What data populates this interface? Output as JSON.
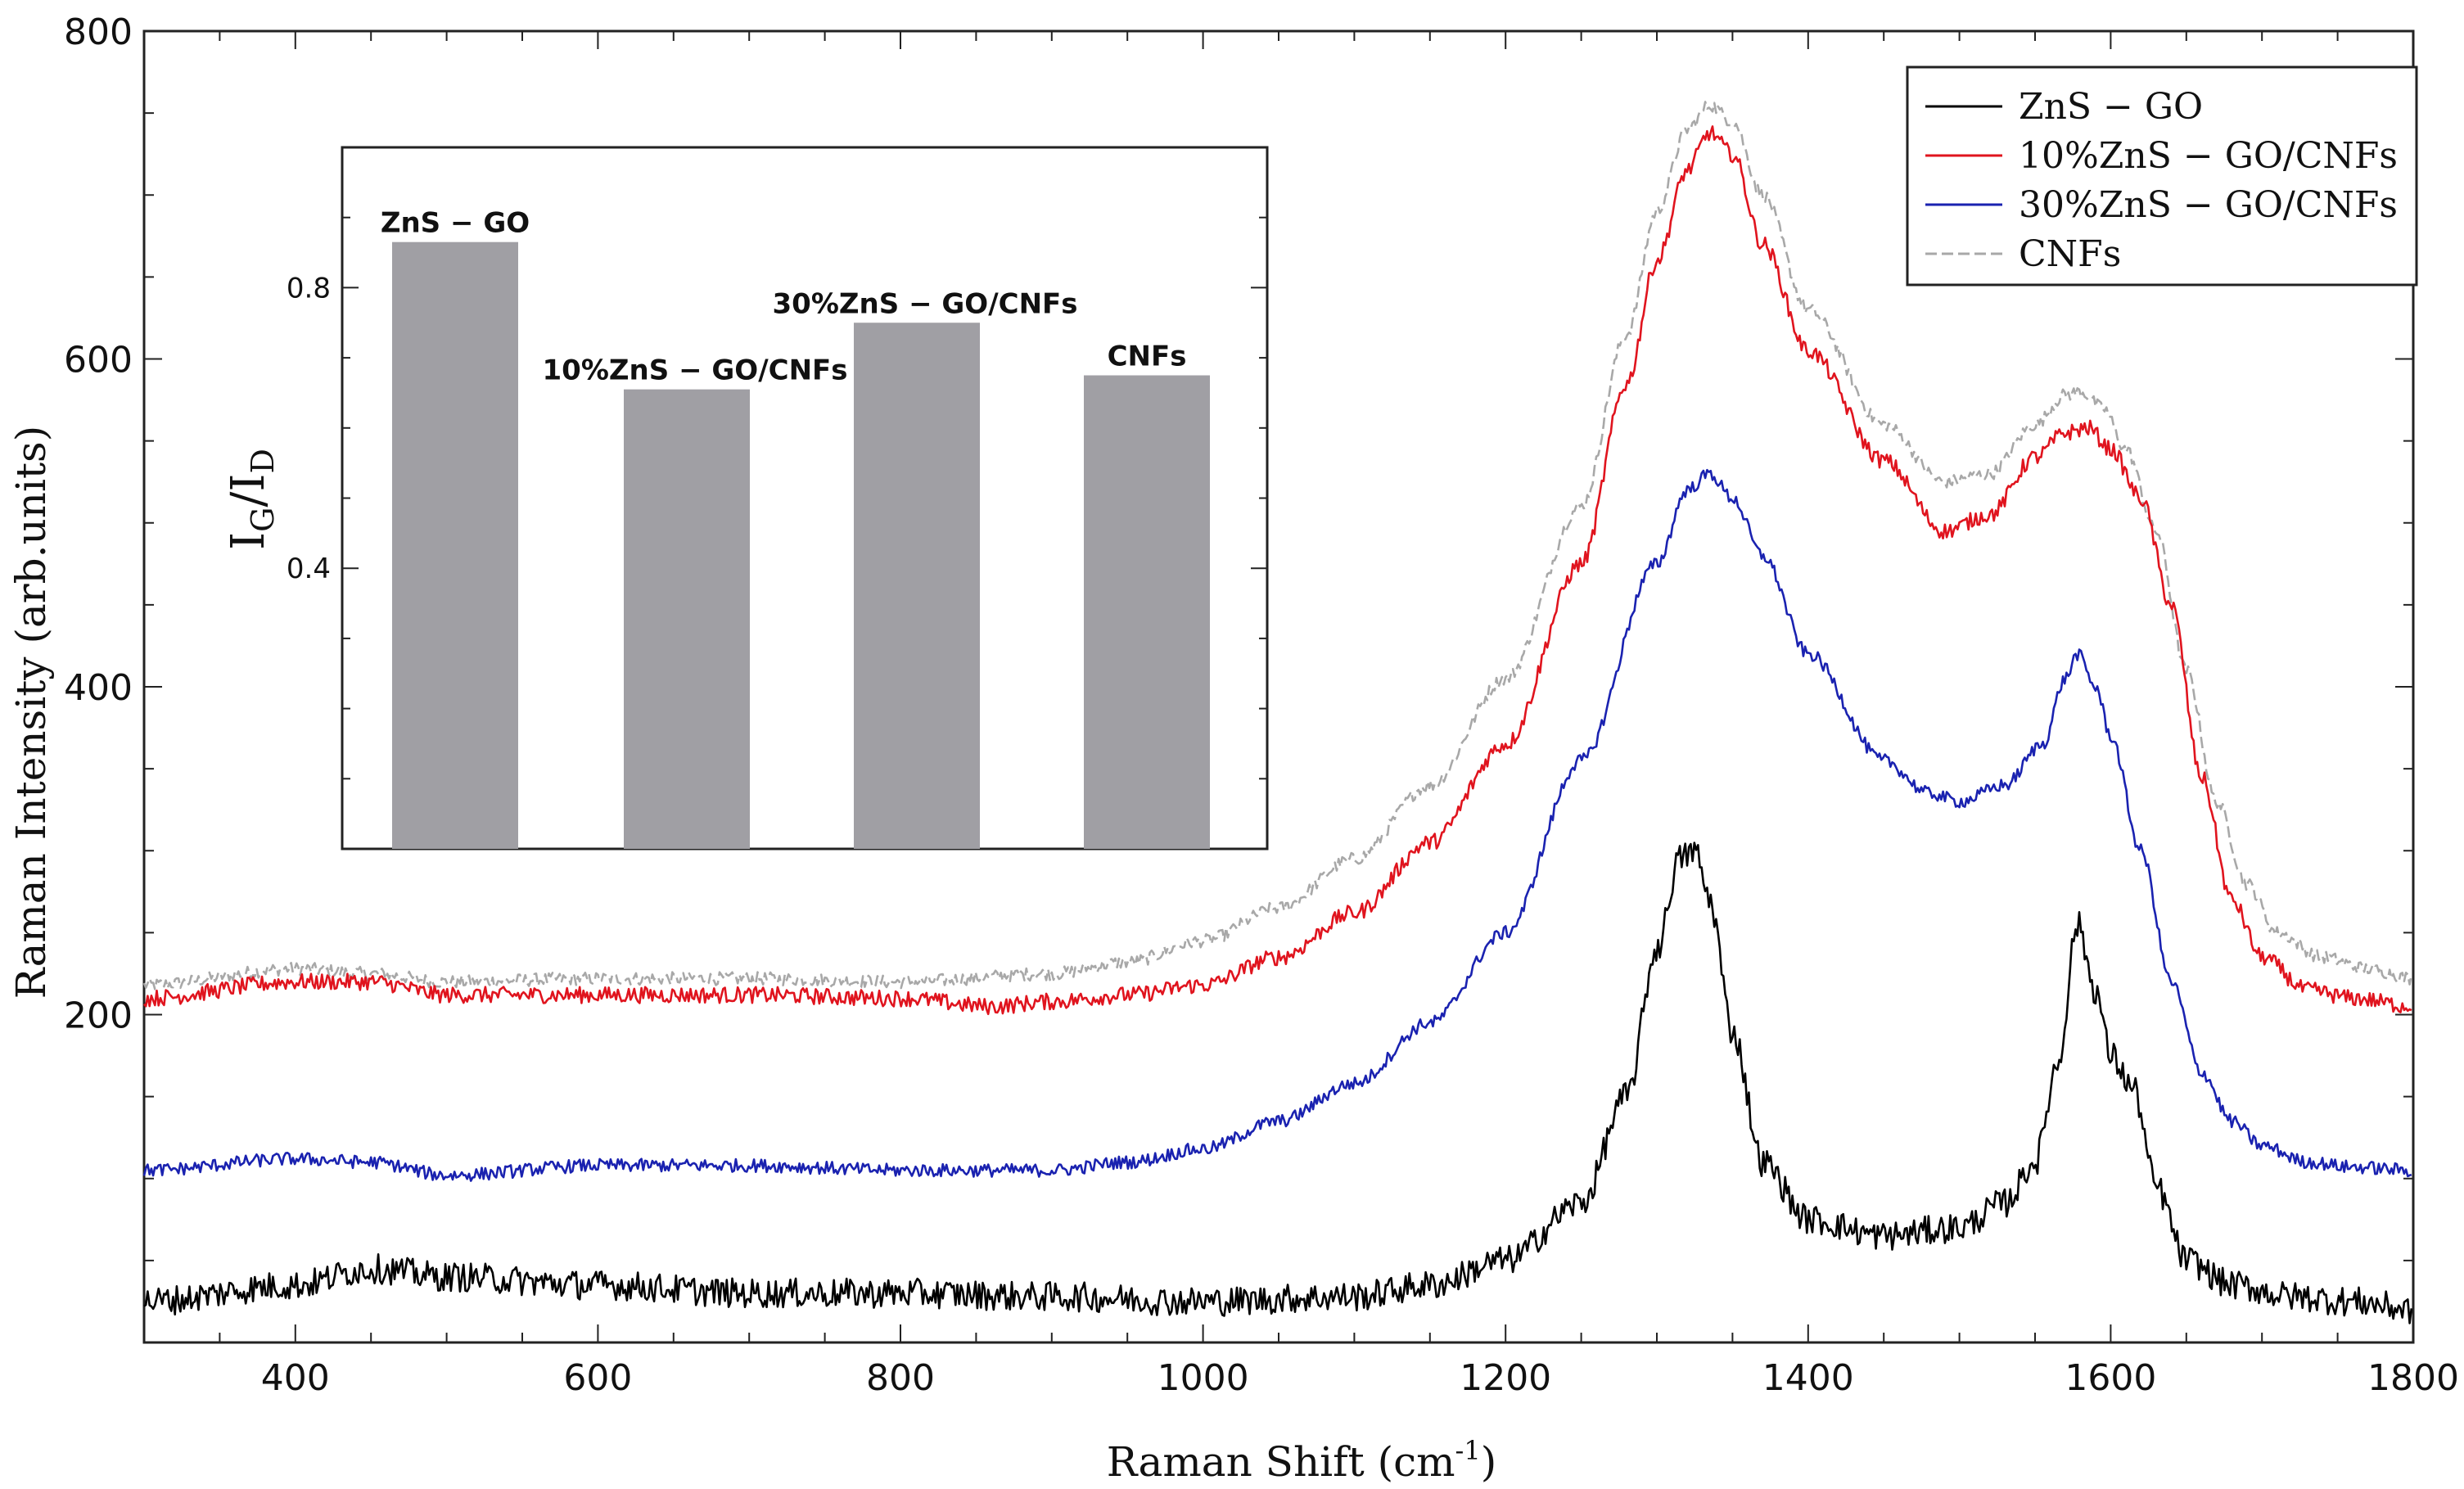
{
  "chart_data": {
    "type": "line",
    "title": "",
    "xlabel": "Raman Shift (cm-1)",
    "xlabel_main": "Raman Shift (cm",
    "xlabel_sup": "-1",
    "xlabel_close": ")",
    "ylabel": "Raman Intensity (arb.units)",
    "xlim": [
      300,
      1800
    ],
    "ylim": [
      0,
      800
    ],
    "xticks": [
      400,
      600,
      800,
      1000,
      1200,
      1400,
      1600,
      1800
    ],
    "yticks": [
      200,
      400,
      600,
      800
    ],
    "legend_position": "top-right",
    "series": [
      {
        "name": "ZnS − GO",
        "color": "#000000",
        "dash": "solid",
        "noise": 9,
        "x": [
          300,
          400,
          450,
          500,
          600,
          700,
          800,
          900,
          1000,
          1100,
          1150,
          1200,
          1250,
          1280,
          1300,
          1315,
          1325,
          1335,
          1350,
          1370,
          1400,
          1450,
          1500,
          1530,
          1550,
          1565,
          1578,
          1590,
          1600,
          1615,
          1630,
          1650,
          1680,
          1720,
          1760,
          1800
        ],
        "y": [
          25,
          35,
          45,
          40,
          35,
          30,
          30,
          28,
          25,
          28,
          35,
          50,
          85,
          150,
          240,
          295,
          300,
          270,
          190,
          110,
          75,
          65,
          70,
          85,
          110,
          170,
          255,
          215,
          175,
          155,
          95,
          50,
          35,
          28,
          25,
          20
        ]
      },
      {
        "name": "10%ZnS − GO/CNFs",
        "color": "#e0141e",
        "dash": "solid",
        "noise": 5,
        "x": [
          300,
          400,
          450,
          500,
          600,
          700,
          800,
          860,
          900,
          950,
          1000,
          1050,
          1100,
          1150,
          1200,
          1250,
          1280,
          1300,
          1320,
          1335,
          1350,
          1370,
          1400,
          1450,
          1490,
          1520,
          1550,
          1570,
          1585,
          1600,
          1620,
          1640,
          1660,
          1680,
          1700,
          1730,
          1760,
          1800
        ],
        "y": [
          210,
          220,
          220,
          212,
          212,
          212,
          210,
          205,
          208,
          212,
          218,
          235,
          262,
          305,
          365,
          475,
          585,
          660,
          715,
          738,
          725,
          670,
          605,
          538,
          495,
          505,
          540,
          555,
          558,
          545,
          515,
          450,
          345,
          270,
          235,
          215,
          210,
          205
        ]
      },
      {
        "name": "30%ZnS − GO/CNFs",
        "color": "#1a22b0",
        "dash": "solid",
        "noise": 4,
        "x": [
          300,
          400,
          450,
          500,
          600,
          700,
          800,
          900,
          950,
          1000,
          1050,
          1100,
          1150,
          1200,
          1250,
          1300,
          1320,
          1335,
          1350,
          1370,
          1400,
          1450,
          1480,
          1500,
          1530,
          1555,
          1570,
          1578,
          1590,
          1600,
          1620,
          1640,
          1660,
          1680,
          1700,
          1730,
          1760,
          1800
        ],
        "y": [
          105,
          112,
          110,
          102,
          108,
          108,
          105,
          105,
          110,
          118,
          135,
          158,
          195,
          250,
          355,
          475,
          520,
          530,
          515,
          480,
          420,
          355,
          335,
          330,
          340,
          365,
          405,
          420,
          400,
          370,
          300,
          220,
          165,
          135,
          120,
          110,
          107,
          105
        ]
      },
      {
        "name": "CNFs",
        "color": "#a8a8a8",
        "dash": "dashed",
        "noise": 4,
        "x": [
          300,
          400,
          450,
          500,
          600,
          700,
          800,
          900,
          950,
          1000,
          1050,
          1100,
          1150,
          1200,
          1250,
          1280,
          1300,
          1320,
          1335,
          1350,
          1370,
          1400,
          1450,
          1490,
          1520,
          1550,
          1570,
          1580,
          1595,
          1610,
          1630,
          1650,
          1670,
          1690,
          1710,
          1740,
          1770,
          1800
        ],
        "y": [
          218,
          228,
          225,
          220,
          222,
          222,
          220,
          225,
          232,
          245,
          265,
          295,
          340,
          405,
          510,
          615,
          690,
          740,
          755,
          745,
          700,
          630,
          560,
          525,
          530,
          560,
          578,
          580,
          570,
          545,
          495,
          410,
          330,
          280,
          250,
          235,
          228,
          222
        ]
      }
    ],
    "inset": {
      "type": "bar",
      "ylabel_main": "I",
      "ylabel_sub1": "G",
      "ylabel_slash": "/I",
      "ylabel_sub2": "D",
      "ylim": [
        0,
        1.0
      ],
      "yticks": [
        "0.4",
        "0.8"
      ],
      "ytick_values": [
        0.4,
        0.8
      ],
      "bar_color": "#a09fa4",
      "categories": [
        "ZnS − GO",
        "10%ZnS − GO/CNFs",
        "30%ZnS − GO/CNFs",
        "CNFs"
      ],
      "values": [
        0.865,
        0.655,
        0.75,
        0.675
      ]
    }
  }
}
